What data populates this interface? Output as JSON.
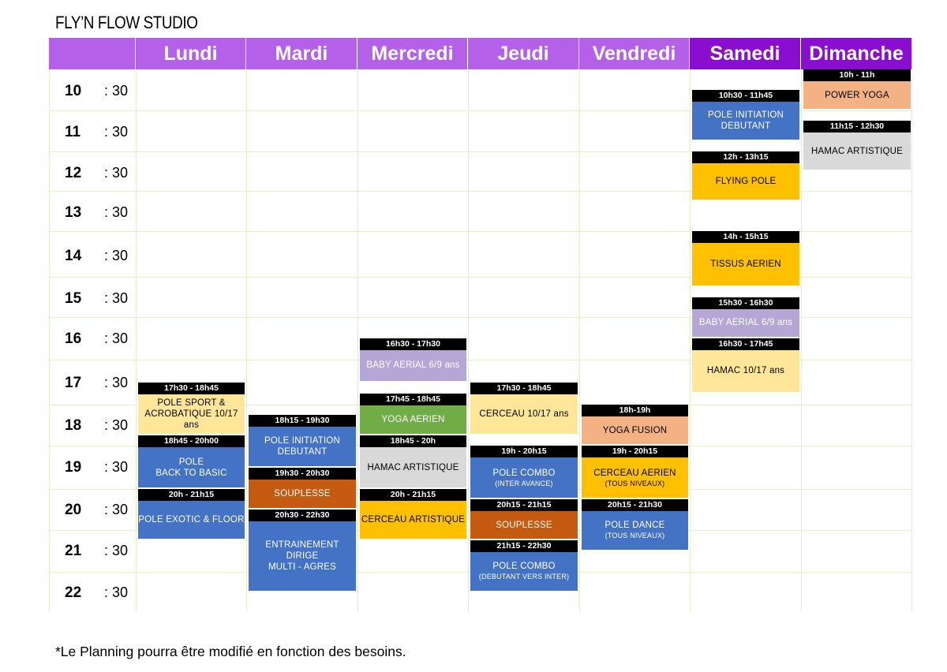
{
  "title": "FLY’N FLOW STUDIO",
  "footnote": "*Le Planning pourra être modifié en fonction des besoins.",
  "colors": {
    "header_weekday": "#b560e9",
    "header_weekend": "#8a0ecf",
    "blue": "#4472c4",
    "yellow": "#ffc000",
    "light_yellow": "#ffe699",
    "green": "#70ad47",
    "grey": "#d9d9d9",
    "brown": "#c55a11",
    "peach": "#f4b183",
    "lavender": "#b4a7d6"
  },
  "days": [
    "Lundi",
    "Mardi",
    "Mercredi",
    "Jeudi",
    "Vendredi",
    "Samedi",
    "Dimanche"
  ],
  "hours": [
    {
      "h": "10",
      "half": ": 30"
    },
    {
      "h": "11",
      "half": ": 30"
    },
    {
      "h": "12",
      "half": ": 30"
    },
    {
      "h": "13",
      "half": ": 30"
    },
    {
      "h": "14",
      "half": ": 30"
    },
    {
      "h": "15",
      "half": ": 30"
    },
    {
      "h": "16",
      "half": ": 30"
    },
    {
      "h": "17",
      "half": ": 30"
    },
    {
      "h": "18",
      "half": ": 30"
    },
    {
      "h": "19",
      "half": ": 30"
    },
    {
      "h": "20",
      "half": ": 30"
    },
    {
      "h": "21",
      "half": ": 30"
    },
    {
      "h": "22",
      "half": ": 30"
    }
  ],
  "events": [
    {
      "day": "Lundi",
      "time": "17h30 - 18h45",
      "label": "POLE SPORT &\nACROBATIQUE 10/17 ans",
      "sub": "",
      "color": "#ffe699",
      "text": "#000"
    },
    {
      "day": "Lundi",
      "time": "18h45 - 20h00",
      "label": "POLE\nBACK TO BASIC",
      "sub": "",
      "color": "#4472c4",
      "text": "#fff"
    },
    {
      "day": "Lundi",
      "time": "20h - 21h15",
      "label": "POLE EXOTIC & FLOOR",
      "sub": "",
      "color": "#4472c4",
      "text": "#fff"
    },
    {
      "day": "Mardi",
      "time": "18h15 - 19h30",
      "label": "POLE INITIATION\nDEBUTANT",
      "sub": "",
      "color": "#4472c4",
      "text": "#fff"
    },
    {
      "day": "Mardi",
      "time": "19h30 - 20h30",
      "label": "SOUPLESSE",
      "sub": "",
      "color": "#c55a11",
      "text": "#fff"
    },
    {
      "day": "Mardi",
      "time": "20h30 - 22h30",
      "label": "ENTRAINEMENT DIRIGE\nMULTI - AGRES",
      "sub": "",
      "color": "#4472c4",
      "text": "#fff"
    },
    {
      "day": "Mercredi",
      "time": "16h30 - 17h30",
      "label": "BABY AERIAL 6/9 ans",
      "sub": "",
      "color": "#b4a7d6",
      "text": "#fff"
    },
    {
      "day": "Mercredi",
      "time": "17h45 - 18h45",
      "label": "YOGA AERIEN",
      "sub": "",
      "color": "#70ad47",
      "text": "#fff"
    },
    {
      "day": "Mercredi",
      "time": "18h45 - 20h",
      "label": "HAMAC ARTISTIQUE",
      "sub": "",
      "color": "#d9d9d9",
      "text": "#000"
    },
    {
      "day": "Mercredi",
      "time": "20h - 21h15",
      "label": "CERCEAU ARTISTIQUE",
      "sub": "",
      "color": "#ffc000",
      "text": "#000"
    },
    {
      "day": "Jeudi",
      "time": "17h30 - 18h45",
      "label": "CERCEAU 10/17 ans",
      "sub": "",
      "color": "#ffe699",
      "text": "#000"
    },
    {
      "day": "Jeudi",
      "time": "19h - 20h15",
      "label": "POLE COMBO",
      "sub": "(INTER AVANCE)",
      "color": "#4472c4",
      "text": "#fff"
    },
    {
      "day": "Jeudi",
      "time": "20h15 - 21h15",
      "label": "SOUPLESSE",
      "sub": "",
      "color": "#c55a11",
      "text": "#fff"
    },
    {
      "day": "Jeudi",
      "time": "21h15 - 22h30",
      "label": "POLE COMBO",
      "sub": "(DEBUTANT VERS INTER)",
      "color": "#4472c4",
      "text": "#fff"
    },
    {
      "day": "Vendredi",
      "time": "18h-19h",
      "label": "YOGA FUSION",
      "sub": "",
      "color": "#f4b183",
      "text": "#000"
    },
    {
      "day": "Vendredi",
      "time": "19h - 20h15",
      "label": "CERCEAU AERIEN",
      "sub": "(TOUS NIVEAUX)",
      "color": "#ffc000",
      "text": "#000"
    },
    {
      "day": "Vendredi",
      "time": "20h15 - 21h30",
      "label": "POLE DANCE",
      "sub": "(TOUS NIVEAUX)",
      "color": "#4472c4",
      "text": "#fff"
    },
    {
      "day": "Samedi",
      "time": "10h30 - 11h45",
      "label": "POLE INITIATION\nDEBUTANT",
      "sub": "",
      "color": "#4472c4",
      "text": "#fff"
    },
    {
      "day": "Samedi",
      "time": "12h - 13h15",
      "label": "FLYING POLE",
      "sub": "",
      "color": "#ffc000",
      "text": "#000"
    },
    {
      "day": "Samedi",
      "time": "14h - 15h15",
      "label": "TISSUS AERIEN",
      "sub": "",
      "color": "#ffc000",
      "text": "#000"
    },
    {
      "day": "Samedi",
      "time": "15h30 - 16h30",
      "label": "BABY AERIAL 6/9 ans",
      "sub": "",
      "color": "#b4a7d6",
      "text": "#fff"
    },
    {
      "day": "Samedi",
      "time": "16h30 - 17h45",
      "label": "HAMAC 10/17 ans",
      "sub": "",
      "color": "#ffe699",
      "text": "#000"
    },
    {
      "day": "Dimanche",
      "time": "10h - 11h",
      "label": "POWER YOGA",
      "sub": "",
      "color": "#f4b183",
      "text": "#000"
    },
    {
      "day": "Dimanche",
      "time": "11h15 - 12h30",
      "label": "HAMAC ARTISTIQUE",
      "sub": "",
      "color": "#d9d9d9",
      "text": "#000"
    }
  ]
}
